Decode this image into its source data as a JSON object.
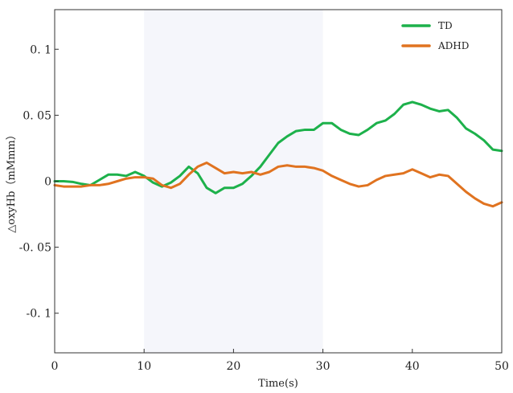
{
  "chart_data": {
    "type": "line",
    "xlabel": "Time(s)",
    "ylabel": "△oxyHb（mMmm）",
    "xlim": [
      0,
      50
    ],
    "ylim": [
      -0.13,
      0.13
    ],
    "x_ticks": [
      {
        "value": 0,
        "label": "0"
      },
      {
        "value": 10,
        "label": "10"
      },
      {
        "value": 20,
        "label": "20"
      },
      {
        "value": 30,
        "label": "30"
      },
      {
        "value": 40,
        "label": "40"
      },
      {
        "value": 50,
        "label": "50"
      }
    ],
    "y_ticks": [
      {
        "value": 0.1,
        "label": "0. 1"
      },
      {
        "value": 0.05,
        "label": "0. 05"
      },
      {
        "value": 0,
        "label": "0"
      },
      {
        "value": -0.05,
        "label": "-0. 05"
      },
      {
        "value": -0.1,
        "label": "-0. 1"
      }
    ],
    "shaded_region": [
      10,
      30
    ],
    "grid": false,
    "legend_position": "top-right",
    "series": [
      {
        "name": "TD",
        "color": "#1db14b",
        "x": [
          0,
          1,
          2,
          3,
          4,
          5,
          6,
          7,
          8,
          9,
          10,
          11,
          12,
          13,
          14,
          15,
          16,
          17,
          18,
          19,
          20,
          21,
          22,
          23,
          24,
          25,
          26,
          27,
          28,
          29,
          30,
          31,
          32,
          33,
          34,
          35,
          36,
          37,
          38,
          39,
          40,
          41,
          42,
          43,
          44,
          45,
          46,
          47,
          48,
          49,
          50
        ],
        "values": [
          0.0,
          0.0,
          -0.0005,
          -0.002,
          -0.003,
          0.001,
          0.005,
          0.005,
          0.004,
          0.007,
          0.004,
          -0.001,
          -0.004,
          -0.001,
          0.004,
          0.011,
          0.006,
          -0.005,
          -0.009,
          -0.005,
          -0.005,
          -0.002,
          0.004,
          0.011,
          0.02,
          0.029,
          0.034,
          0.038,
          0.039,
          0.039,
          0.044,
          0.044,
          0.039,
          0.036,
          0.035,
          0.039,
          0.044,
          0.046,
          0.051,
          0.058,
          0.06,
          0.058,
          0.055,
          0.053,
          0.054,
          0.048,
          0.04,
          0.036,
          0.031,
          0.024,
          0.023
        ]
      },
      {
        "name": "ADHD",
        "color": "#e07320",
        "x": [
          0,
          1,
          2,
          3,
          4,
          5,
          6,
          7,
          8,
          9,
          10,
          11,
          12,
          13,
          14,
          15,
          16,
          17,
          18,
          19,
          20,
          21,
          22,
          23,
          24,
          25,
          26,
          27,
          28,
          29,
          30,
          31,
          32,
          33,
          34,
          35,
          36,
          37,
          38,
          39,
          40,
          41,
          42,
          43,
          44,
          45,
          46,
          47,
          48,
          49,
          50
        ],
        "values": [
          -0.003,
          -0.004,
          -0.004,
          -0.004,
          -0.003,
          -0.003,
          -0.002,
          0.0,
          0.002,
          0.003,
          0.003,
          0.002,
          -0.003,
          -0.005,
          -0.002,
          0.005,
          0.011,
          0.014,
          0.01,
          0.006,
          0.007,
          0.006,
          0.007,
          0.005,
          0.007,
          0.011,
          0.012,
          0.011,
          0.011,
          0.01,
          0.008,
          0.004,
          0.001,
          -0.002,
          -0.004,
          -0.003,
          0.001,
          0.004,
          0.005,
          0.006,
          0.009,
          0.006,
          0.003,
          0.005,
          0.004,
          -0.002,
          -0.008,
          -0.013,
          -0.017,
          -0.019,
          -0.016
        ]
      }
    ]
  }
}
